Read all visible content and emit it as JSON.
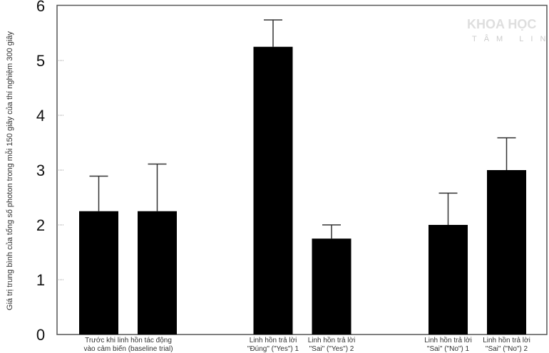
{
  "chart_data": {
    "type": "bar",
    "ylabel": "Giá trị trung bình của tổng số photon trong mỗi 150 giây của thí nghiệm 300 giây",
    "ylim": [
      0,
      6
    ],
    "yticks": [
      "0",
      "1",
      "2",
      "3",
      "4",
      "5",
      "6"
    ],
    "grid": false,
    "categories": [
      [
        "Trước khi linh hồn tác động",
        "vào cảm biến (baseline trial)"
      ],
      [
        "",
        ""
      ],
      [
        "Linh hồn trả lời",
        "\"Đúng\" (\"Yes\") 1"
      ],
      [
        "Linh hồn trả lời",
        "\"Sai\" (\"Yes\") 2"
      ],
      [
        "Linh hồn trả lời",
        "\"Sai\" (\"No\") 1"
      ],
      [
        "Linh hồn trả lời",
        "\"Sai\" (\"No\") 2"
      ]
    ],
    "values": [
      2.25,
      2.25,
      5.25,
      1.75,
      2.0,
      3.0
    ],
    "error_upper": [
      2.89,
      3.11,
      5.74,
      2.0,
      2.58,
      3.59
    ],
    "bar_color": "#000000"
  },
  "watermark": {
    "line1": "KHOA HỌC",
    "line2": "TÂM LINH"
  }
}
